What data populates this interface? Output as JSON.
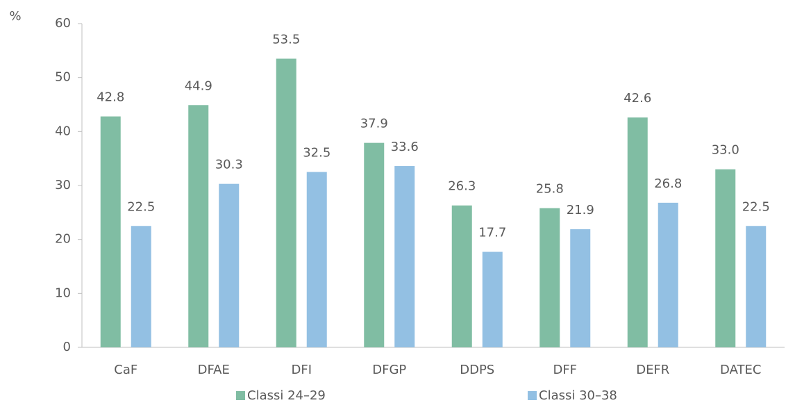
{
  "chart_data": {
    "type": "bar",
    "y_label": "%",
    "categories": [
      "CaF",
      "DFAE",
      "DFI",
      "DFGP",
      "DDPS",
      "DFF",
      "DEFR",
      "DATEC"
    ],
    "series": [
      {
        "name": "Classi 24–29",
        "color": "#80bda3",
        "values": [
          42.8,
          44.9,
          53.5,
          37.9,
          26.3,
          25.8,
          42.6,
          33.0
        ],
        "value_labels": [
          "42.8",
          "44.9",
          "53.5",
          "37.9",
          "26.3",
          "25.8",
          "42.6",
          "33.0"
        ]
      },
      {
        "name": "Classi 30–38",
        "color": "#93c0e3",
        "values": [
          22.5,
          30.3,
          32.5,
          33.6,
          17.7,
          21.9,
          26.8,
          22.5
        ],
        "value_labels": [
          "22.5",
          "30.3",
          "32.5",
          "33.6",
          "17.7",
          "21.9",
          "26.8",
          "22.5"
        ]
      }
    ],
    "ylim": [
      0,
      60
    ],
    "yticks": [
      0,
      10,
      20,
      30,
      40,
      50,
      60
    ],
    "grid": false,
    "legend": "bottom"
  }
}
